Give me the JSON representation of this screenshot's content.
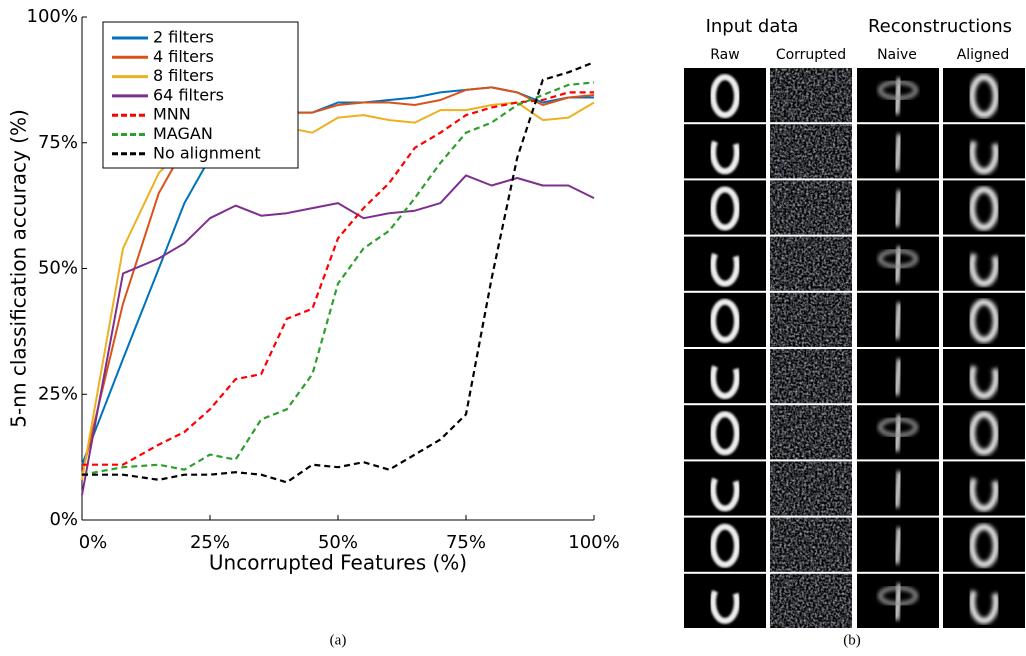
{
  "chart_data": {
    "type": "line",
    "xlabel": "Uncorrupted Features (%)",
    "ylabel": "5-nn classification accuracy (%)",
    "x": [
      0,
      8,
      15,
      20,
      25,
      30,
      35,
      40,
      45,
      50,
      55,
      60,
      65,
      70,
      75,
      80,
      85,
      90,
      95,
      100
    ],
    "series": [
      {
        "name": "2 filters",
        "color": "#0072bd",
        "dashed": false,
        "values": [
          11,
          32,
          50,
          63,
          72,
          76,
          79,
          81,
          81,
          83,
          83,
          83.5,
          84,
          85,
          85.5,
          86,
          85,
          83,
          84,
          84
        ]
      },
      {
        "name": "4 filters",
        "color": "#d95319",
        "dashed": false,
        "values": [
          9,
          43,
          65,
          74,
          78,
          79,
          80.5,
          81,
          81,
          82.5,
          83,
          83,
          82.5,
          83.5,
          85.5,
          86,
          85,
          82.5,
          84,
          84.5
        ]
      },
      {
        "name": "8 filters",
        "color": "#edb120",
        "dashed": false,
        "values": [
          8,
          54,
          69,
          74,
          76,
          77,
          76,
          78,
          77,
          80,
          80.5,
          79.5,
          79,
          81.5,
          81.5,
          82.5,
          83,
          79.5,
          80,
          83
        ]
      },
      {
        "name": "64 filters",
        "color": "#7e2f8e",
        "dashed": false,
        "values": [
          5,
          49,
          52,
          55,
          60,
          62.5,
          60.5,
          61,
          62,
          63,
          60,
          61,
          61.5,
          63,
          68.5,
          66.5,
          68,
          66.5,
          66.5,
          64
        ]
      },
      {
        "name": "MNN",
        "color": "#ff0000",
        "dashed": true,
        "values": [
          11,
          11,
          15,
          17.5,
          22,
          28,
          29,
          40,
          42,
          56,
          62,
          67,
          74,
          77,
          80.5,
          82,
          83,
          83.5,
          85,
          85
        ]
      },
      {
        "name": "MAGAN",
        "color": "#2ca02c",
        "dashed": true,
        "values": [
          9,
          10.5,
          11,
          10,
          13,
          12,
          20,
          22,
          29,
          47,
          54,
          57.5,
          64,
          71,
          77,
          79,
          82.5,
          84.5,
          86.5,
          87
        ]
      },
      {
        "name": "No alignment",
        "color": "#000000",
        "dashed": true,
        "values": [
          9,
          9,
          8,
          9,
          9,
          9.5,
          9,
          7.5,
          11,
          10.5,
          11.5,
          10,
          13,
          16,
          21,
          48,
          72,
          87.5,
          89,
          91
        ]
      }
    ],
    "xlim": [
      0,
      100
    ],
    "ylim": [
      0,
      100
    ],
    "xticks": [
      {
        "value": 0,
        "label": "0%"
      },
      {
        "value": 25,
        "label": "25%"
      },
      {
        "value": 50,
        "label": "50%"
      },
      {
        "value": 75,
        "label": "75%"
      },
      {
        "value": 100,
        "label": "100%"
      }
    ],
    "yticks": [
      {
        "value": 0,
        "label": "0%"
      },
      {
        "value": 25,
        "label": "25%"
      },
      {
        "value": 50,
        "label": "50%"
      },
      {
        "value": 75,
        "label": "75%"
      },
      {
        "value": 100,
        "label": "100%"
      }
    ],
    "grid": false,
    "legend": "upper left"
  },
  "panel_b": {
    "groups": [
      "Input data",
      "Reconstructions"
    ],
    "columns": [
      "Raw",
      "Corrupted",
      "Naive",
      "Aligned"
    ]
  },
  "captions": [
    "(a)",
    "(b)"
  ]
}
